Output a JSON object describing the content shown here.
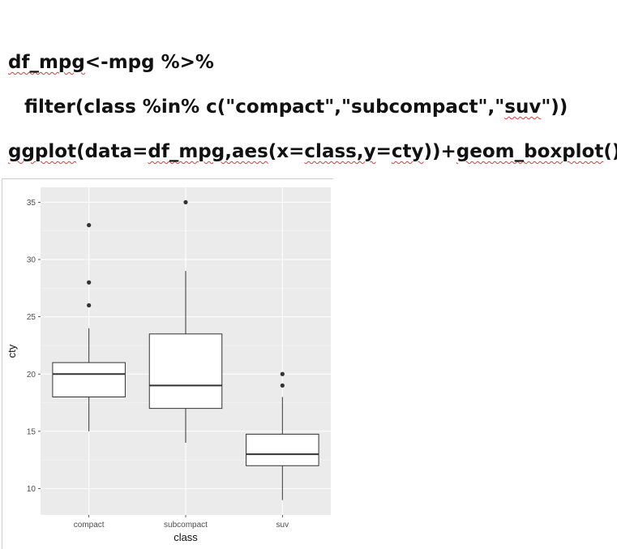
{
  "code": {
    "line1": [
      {
        "t": "df_mpg",
        "sq": true
      },
      {
        "t": "<-mpg %>%",
        "sq": false
      }
    ],
    "line2": [
      {
        "t": "filter(class %in% c(\"compact\",\"subcompact\",\"",
        "sq": false
      },
      {
        "t": "suv",
        "sq": true
      },
      {
        "t": "\"))",
        "sq": false
      }
    ],
    "line3": [
      {
        "t": "ggplot",
        "sq": true
      },
      {
        "t": "(data=",
        "sq": false
      },
      {
        "t": "df_mpg,aes",
        "sq": true
      },
      {
        "t": "(x=",
        "sq": false
      },
      {
        "t": "class,y",
        "sq": true
      },
      {
        "t": "=",
        "sq": false
      },
      {
        "t": "cty",
        "sq": true
      },
      {
        "t": "))+",
        "sq": false
      },
      {
        "t": "geom_boxplot",
        "sq": true
      },
      {
        "t": "()",
        "sq": false
      }
    ]
  },
  "chart_data": {
    "type": "boxplot",
    "xlabel": "class",
    "ylabel": "cty",
    "categories": [
      "compact",
      "subcompact",
      "suv"
    ],
    "boxes": [
      {
        "category": "compact",
        "lower_whisker": 15,
        "q1": 18,
        "median": 20,
        "q3": 21,
        "upper_whisker": 24,
        "outliers": [
          26,
          28,
          33
        ]
      },
      {
        "category": "subcompact",
        "lower_whisker": 14,
        "q1": 17,
        "median": 19,
        "q3": 23.5,
        "upper_whisker": 29,
        "outliers": [
          35
        ]
      },
      {
        "category": "suv",
        "lower_whisker": 9,
        "q1": 12,
        "median": 13,
        "q3": 14.75,
        "upper_whisker": 18,
        "outliers": [
          19,
          20
        ]
      }
    ],
    "yticks": [
      10,
      15,
      20,
      25,
      30,
      35
    ],
    "ylim": [
      7.7,
      36.3
    ],
    "grid": true,
    "colors": {
      "panel": "#ebebeb",
      "grid_major": "#ffffff",
      "box_fill": "#ffffff",
      "box_line": "#333333",
      "text": "#4d4d4d"
    }
  }
}
